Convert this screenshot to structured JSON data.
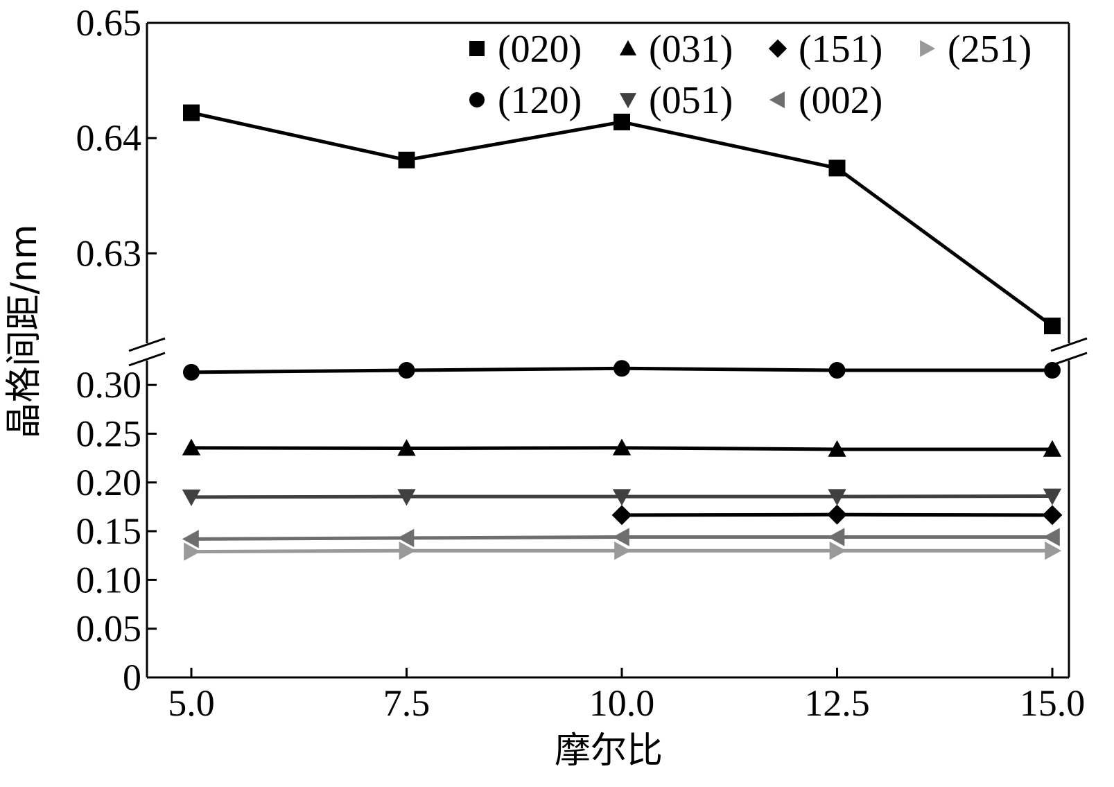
{
  "chart_data": {
    "type": "line",
    "xlabel": "摩尔比",
    "ylabel": "晶格间距/nm",
    "x_ticks": [
      "5.0",
      "7.5",
      "10.0",
      "12.5",
      "15.0"
    ],
    "y_ticks_lower": [
      "0",
      "0.05",
      "0.10",
      "0.15",
      "0.20",
      "0.25",
      "0.30"
    ],
    "y_ticks_upper": [
      "0.63",
      "0.64",
      "0.65"
    ],
    "ylim_lower": [
      0,
      0.325
    ],
    "ylim_upper": [
      0.6222,
      0.65
    ],
    "axis_break": true,
    "grid": false,
    "legend_position": "top-right",
    "series": [
      {
        "name": "(020)",
        "marker": "square",
        "color": "#000000",
        "segment": "upper",
        "points": [
          [
            5.0,
            0.6422
          ],
          [
            7.5,
            0.6381
          ],
          [
            10.0,
            0.6414
          ],
          [
            12.5,
            0.6374
          ],
          [
            15.0,
            0.6237
          ]
        ]
      },
      {
        "name": "(031)",
        "marker": "triangle-up",
        "color": "#000000",
        "segment": "lower",
        "points": [
          [
            5.0,
            0.2355
          ],
          [
            7.5,
            0.235
          ],
          [
            10.0,
            0.2355
          ],
          [
            12.5,
            0.234
          ],
          [
            15.0,
            0.234
          ]
        ]
      },
      {
        "name": "(151)",
        "marker": "diamond",
        "color": "#000000",
        "segment": "lower",
        "points": [
          [
            10.0,
            0.1665
          ],
          [
            12.5,
            0.167
          ],
          [
            15.0,
            0.1665
          ]
        ]
      },
      {
        "name": "(251)",
        "marker": "triangle-right",
        "color": "#999999",
        "segment": "lower",
        "points": [
          [
            5.0,
            0.129
          ],
          [
            7.5,
            0.13
          ],
          [
            10.0,
            0.13
          ],
          [
            12.5,
            0.13
          ],
          [
            15.0,
            0.13
          ]
        ]
      },
      {
        "name": "(120)",
        "marker": "circle",
        "color": "#000000",
        "segment": "lower",
        "points": [
          [
            5.0,
            0.313
          ],
          [
            7.5,
            0.315
          ],
          [
            10.0,
            0.317
          ],
          [
            12.5,
            0.315
          ],
          [
            15.0,
            0.315
          ]
        ]
      },
      {
        "name": "(051)",
        "marker": "triangle-down",
        "color": "#404040",
        "segment": "lower",
        "points": [
          [
            5.0,
            0.185
          ],
          [
            7.5,
            0.1855
          ],
          [
            10.0,
            0.1855
          ],
          [
            12.5,
            0.1855
          ],
          [
            15.0,
            0.186
          ]
        ]
      },
      {
        "name": "(002)",
        "marker": "triangle-left",
        "color": "#6e6e6e",
        "segment": "lower",
        "points": [
          [
            5.0,
            0.142
          ],
          [
            7.5,
            0.143
          ],
          [
            10.0,
            0.144
          ],
          [
            12.5,
            0.144
          ],
          [
            15.0,
            0.144
          ]
        ]
      }
    ]
  }
}
